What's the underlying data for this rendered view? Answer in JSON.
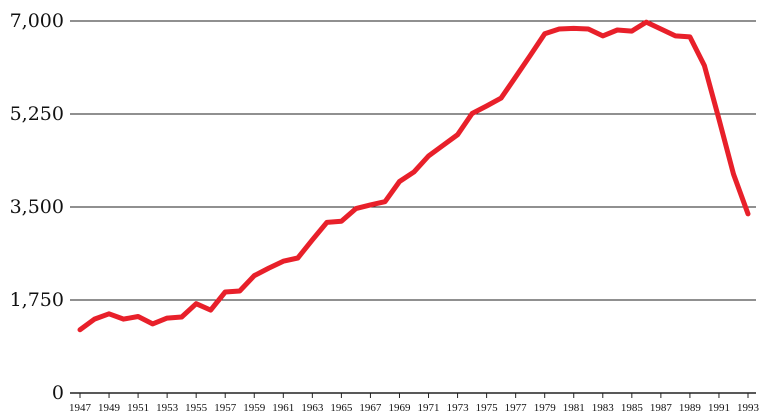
{
  "chart_data": {
    "type": "line",
    "title": "",
    "xlabel": "",
    "ylabel": "",
    "x": [
      1947,
      1948,
      1949,
      1950,
      1951,
      1952,
      1953,
      1954,
      1955,
      1956,
      1957,
      1958,
      1959,
      1960,
      1961,
      1962,
      1963,
      1964,
      1965,
      1966,
      1967,
      1968,
      1969,
      1970,
      1971,
      1972,
      1973,
      1974,
      1975,
      1976,
      1977,
      1978,
      1979,
      1980,
      1981,
      1982,
      1983,
      1984,
      1985,
      1986,
      1987,
      1988,
      1989,
      1990,
      1991,
      1992,
      1993
    ],
    "series": [
      {
        "name": "",
        "color": "#e8202a",
        "values": [
          1190,
          1390,
          1490,
          1390,
          1440,
          1300,
          1410,
          1430,
          1680,
          1560,
          1900,
          1920,
          2210,
          2350,
          2480,
          2540,
          2880,
          3210,
          3230,
          3470,
          3540,
          3600,
          3980,
          4160,
          4460,
          4660,
          4860,
          5260,
          5400,
          5550,
          5950,
          6350,
          6760,
          6850,
          6860,
          6850,
          6720,
          6830,
          6810,
          6980,
          6850,
          6720,
          6700,
          6160,
          5150,
          4120,
          3370
        ]
      }
    ],
    "xticks": [
      "1947",
      "1949",
      "1951",
      "1953",
      "1955",
      "1957",
      "1959",
      "1961",
      "1963",
      "1965",
      "1967",
      "1969",
      "1971",
      "1973",
      "1975",
      "1977",
      "1979",
      "1981",
      "1983",
      "1985",
      "1987",
      "1989",
      "1991",
      "1993"
    ],
    "yticks": [
      "0",
      "1,750",
      "3,500",
      "5,250",
      "7,000"
    ],
    "ytick_values": [
      0,
      1750,
      3500,
      5250,
      7000
    ],
    "ylim": [
      0,
      7000
    ],
    "xlim": [
      1947,
      1993
    ],
    "grid": "horizontal",
    "legend": "none"
  }
}
